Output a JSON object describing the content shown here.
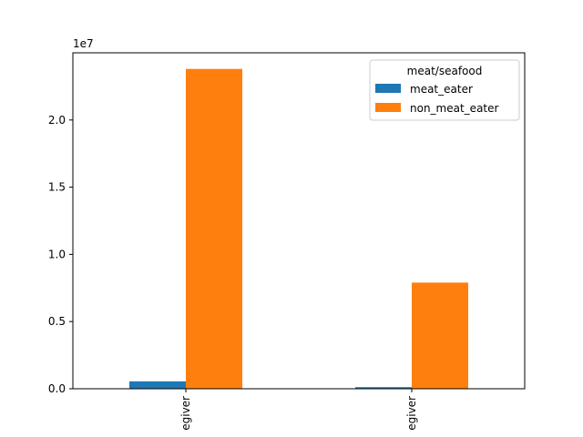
{
  "chart_data": {
    "type": "bar",
    "categories": [
      "egiver",
      "egiver"
    ],
    "series": [
      {
        "name": "meat_eater",
        "values": [
          550000,
          120000
        ]
      },
      {
        "name": "non_meat_eater",
        "values": [
          23800000,
          7900000
        ]
      }
    ],
    "title": "",
    "xlabel": "",
    "ylabel": "",
    "ylim": [
      0,
      25000000
    ],
    "y_ticks": [
      0,
      5000000,
      10000000,
      15000000,
      20000000
    ],
    "y_tick_labels": [
      "0.0",
      "0.5",
      "1.0",
      "1.5",
      "2.0"
    ],
    "y_offset_label": "1e7",
    "legend": {
      "title": "meat/seafood",
      "placement": "top-right"
    },
    "colors": {
      "meat_eater": "#1f77b4",
      "non_meat_eater": "#ff7f0e"
    },
    "grid": false
  }
}
